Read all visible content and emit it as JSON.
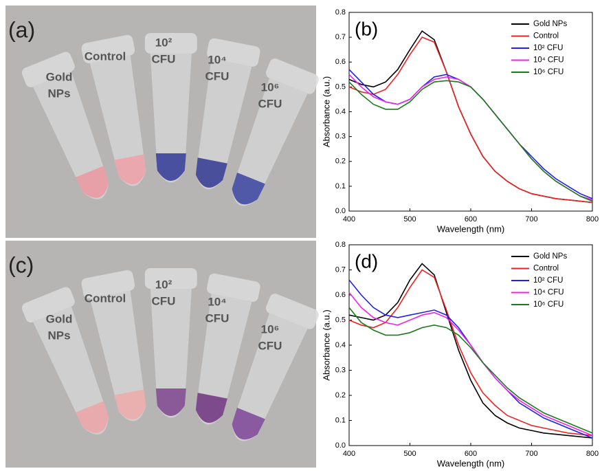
{
  "photos": [
    {
      "panel_label": "(a)",
      "labels": [
        [
          "Gold",
          "NPs"
        ],
        [
          "Control"
        ],
        [
          "10²",
          "CFU"
        ],
        [
          "10⁴",
          "CFU"
        ],
        [
          "10⁶",
          "CFU"
        ]
      ]
    },
    {
      "panel_label": "(c)",
      "labels": [
        [
          "Gold",
          "NPs"
        ],
        [
          "Control"
        ],
        [
          "10²",
          "CFU"
        ],
        [
          "10⁴",
          "CFU"
        ],
        [
          "10⁶",
          "CFU"
        ]
      ]
    }
  ],
  "chart_data": [
    {
      "type": "line",
      "title": "(b)",
      "x_label": "Wavelength (nm)",
      "y_label": "Absorbance (a.u.)",
      "x": [
        400,
        420,
        440,
        460,
        480,
        500,
        520,
        540,
        560,
        580,
        600,
        620,
        640,
        660,
        680,
        700,
        720,
        740,
        760,
        780,
        800
      ],
      "xlim": [
        400,
        800
      ],
      "xticks": [
        400,
        500,
        600,
        700,
        800
      ],
      "ylim": [
        0,
        0.8
      ],
      "yticks": [
        {
          "value": 0,
          "label": "0.0"
        },
        0.1,
        0.2,
        0.3,
        0.4,
        0.5,
        0.6,
        0.7,
        0.8
      ],
      "legend": "upper right",
      "series": [
        {
          "name": "Gold NPs",
          "color": "#000000",
          "values": [
            0.53,
            0.51,
            0.5,
            0.52,
            0.57,
            0.65,
            0.725,
            0.69,
            0.56,
            0.42,
            0.31,
            0.22,
            0.16,
            0.12,
            0.09,
            0.07,
            0.06,
            0.05,
            0.045,
            0.04,
            0.035
          ]
        },
        {
          "name": "Control",
          "color": "#ee2222",
          "values": [
            0.5,
            0.48,
            0.47,
            0.49,
            0.55,
            0.63,
            0.7,
            0.68,
            0.56,
            0.42,
            0.31,
            0.22,
            0.16,
            0.12,
            0.09,
            0.07,
            0.06,
            0.05,
            0.045,
            0.04,
            0.035
          ]
        },
        {
          "name": "10² CFU",
          "color": "#1f1fee",
          "values": [
            0.57,
            0.52,
            0.47,
            0.44,
            0.43,
            0.45,
            0.5,
            0.54,
            0.55,
            0.53,
            0.5,
            0.45,
            0.39,
            0.33,
            0.27,
            0.22,
            0.17,
            0.13,
            0.1,
            0.07,
            0.05
          ]
        },
        {
          "name": "10⁴ CFU",
          "color": "#ee22ee",
          "values": [
            0.55,
            0.5,
            0.46,
            0.44,
            0.43,
            0.45,
            0.5,
            0.53,
            0.54,
            0.53,
            0.5,
            0.45,
            0.39,
            0.33,
            0.27,
            0.21,
            0.16,
            0.12,
            0.09,
            0.06,
            0.045
          ]
        },
        {
          "name": "10⁶ CFU",
          "color": "#1a7a1a",
          "values": [
            0.52,
            0.47,
            0.43,
            0.41,
            0.41,
            0.44,
            0.49,
            0.52,
            0.525,
            0.52,
            0.5,
            0.45,
            0.39,
            0.33,
            0.27,
            0.21,
            0.16,
            0.12,
            0.09,
            0.06,
            0.04
          ]
        }
      ]
    },
    {
      "type": "line",
      "title": "(d)",
      "x_label": "Wavelength (nm)",
      "y_label": "Absorbance (a.u.)",
      "x": [
        400,
        420,
        440,
        460,
        480,
        500,
        520,
        540,
        560,
        580,
        600,
        620,
        640,
        660,
        680,
        700,
        720,
        740,
        760,
        780,
        800
      ],
      "xlim": [
        400,
        800
      ],
      "xticks": [
        400,
        500,
        600,
        700,
        800
      ],
      "ylim": [
        0,
        0.8
      ],
      "yticks": [
        {
          "value": 0,
          "label": "0.0"
        },
        0.1,
        0.2,
        0.3,
        0.4,
        0.5,
        0.6,
        0.7,
        0.8
      ],
      "legend": "upper right",
      "series": [
        {
          "name": "Gold NPs",
          "color": "#000000",
          "values": [
            0.52,
            0.51,
            0.5,
            0.52,
            0.57,
            0.66,
            0.725,
            0.68,
            0.53,
            0.38,
            0.26,
            0.17,
            0.12,
            0.09,
            0.07,
            0.06,
            0.05,
            0.045,
            0.04,
            0.035,
            0.03
          ]
        },
        {
          "name": "Control",
          "color": "#ee2222",
          "values": [
            0.5,
            0.48,
            0.47,
            0.49,
            0.55,
            0.63,
            0.7,
            0.67,
            0.54,
            0.4,
            0.29,
            0.21,
            0.16,
            0.12,
            0.1,
            0.08,
            0.07,
            0.06,
            0.05,
            0.045,
            0.04
          ]
        },
        {
          "name": "10² CFU",
          "color": "#1f1fee",
          "values": [
            0.66,
            0.6,
            0.55,
            0.52,
            0.51,
            0.52,
            0.53,
            0.54,
            0.52,
            0.47,
            0.4,
            0.33,
            0.27,
            0.22,
            0.17,
            0.14,
            0.11,
            0.09,
            0.07,
            0.05,
            0.03
          ]
        },
        {
          "name": "10⁴ CFU",
          "color": "#ee22ee",
          "values": [
            0.61,
            0.55,
            0.51,
            0.49,
            0.48,
            0.5,
            0.52,
            0.53,
            0.51,
            0.46,
            0.4,
            0.33,
            0.27,
            0.22,
            0.18,
            0.15,
            0.12,
            0.1,
            0.08,
            0.06,
            0.04
          ]
        },
        {
          "name": "10⁶ CFU",
          "color": "#1a7a1a",
          "values": [
            0.55,
            0.49,
            0.46,
            0.44,
            0.44,
            0.45,
            0.47,
            0.48,
            0.47,
            0.44,
            0.39,
            0.33,
            0.28,
            0.23,
            0.19,
            0.16,
            0.13,
            0.11,
            0.09,
            0.07,
            0.05
          ]
        }
      ]
    }
  ]
}
